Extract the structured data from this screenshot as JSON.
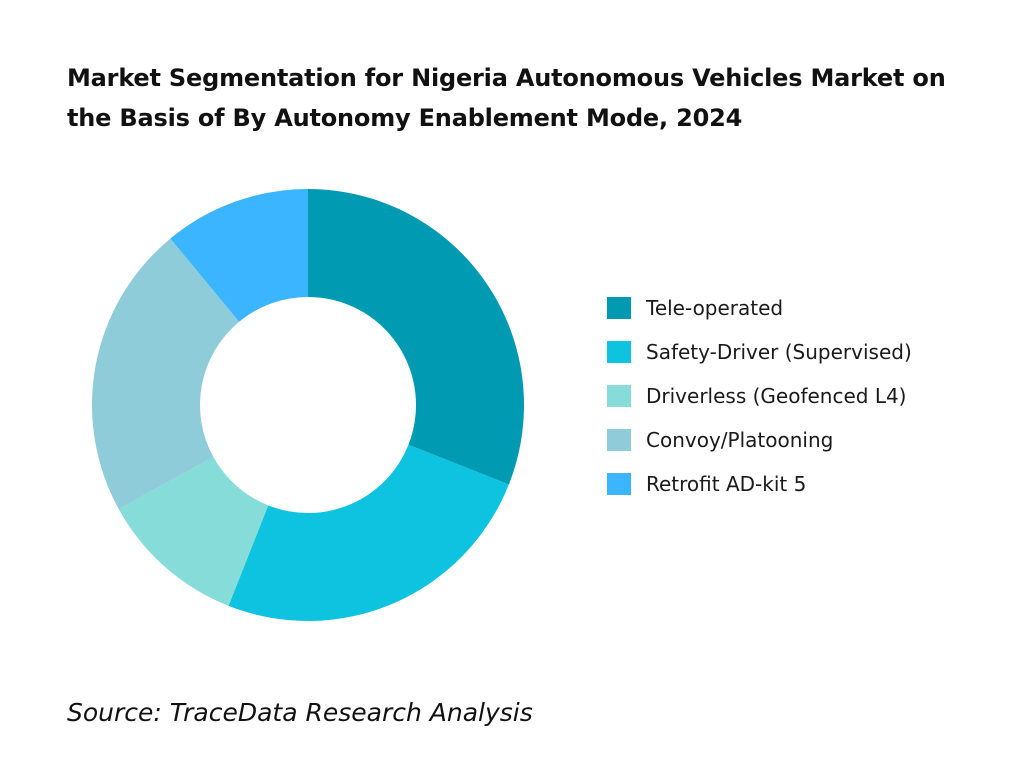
{
  "title": "Market Segmentation for Nigeria Autonomous Vehicles Market on the Basis of By Autonomy Enablement Mode, 2024",
  "source": "Source: TraceData Research Analysis",
  "chart_data": {
    "type": "pie",
    "title": "Market Segmentation for Nigeria Autonomous Vehicles Market on the Basis of By Autonomy Enablement Mode, 2024",
    "donut": true,
    "legend_position": "right",
    "categories": [
      "Tele-operated",
      "Safety-Driver (Supervised)",
      "Driverless (Geofenced L4)",
      "Convoy/Platooning",
      "Retrofit AD-kit 5"
    ],
    "values": [
      31,
      25,
      11,
      22,
      11
    ],
    "colors": [
      "#009AB3",
      "#0DC3E0",
      "#86DCD8",
      "#8ECCDA",
      "#3BB5FF"
    ]
  }
}
